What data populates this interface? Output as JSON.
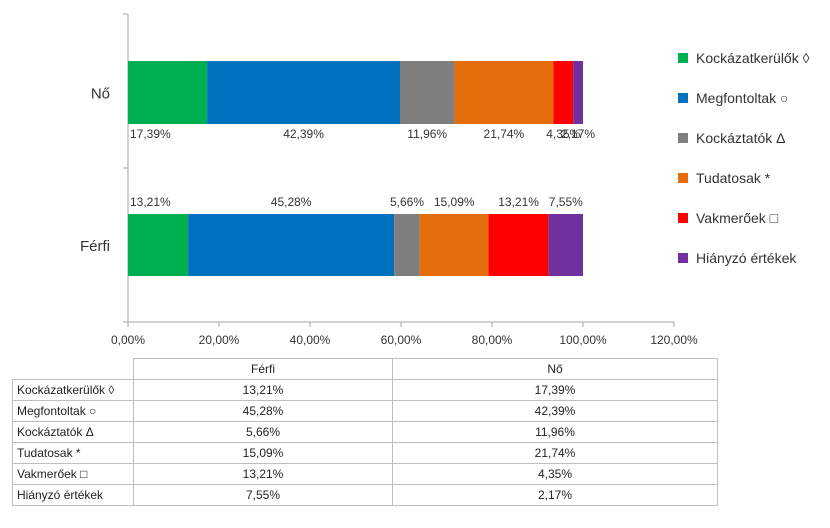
{
  "chart_data": {
    "type": "bar",
    "orientation": "horizontal",
    "stacked": true,
    "categories": [
      "Férfi",
      "Nő"
    ],
    "series": [
      {
        "name": "Kockázatkerülők ◊",
        "values": [
          13.21,
          17.39
        ],
        "color": "#00b050"
      },
      {
        "name": "Megfontoltak ○",
        "values": [
          45.28,
          42.39
        ],
        "color": "#0070c0"
      },
      {
        "name": "Kockáztatók Δ",
        "values": [
          5.66,
          11.96
        ],
        "color": "#7f7f7f"
      },
      {
        "name": "Tudatosak *",
        "values": [
          15.09,
          21.74
        ],
        "color": "#e46c0a"
      },
      {
        "name": "Vakmerőek □",
        "values": [
          13.21,
          4.35
        ],
        "color": "#ff0000"
      },
      {
        "name": "Hiányzó értékek",
        "values": [
          7.55,
          2.17
        ],
        "color": "#7030a0"
      }
    ],
    "data_labels": {
      "Férfi": [
        "13,21%",
        "45,28%",
        "5,66%",
        "15,09%",
        "13,21%",
        "7,55%"
      ],
      "Nő": [
        "17,39%",
        "42,39%",
        "11,96%",
        "21,74%",
        "4,35%",
        "2,17%"
      ]
    },
    "xlim": [
      0,
      120
    ],
    "x_ticks": [
      "0,00%",
      "20,00%",
      "40,00%",
      "60,00%",
      "80,00%",
      "100,00%",
      "120,00%"
    ],
    "legend_position": "right",
    "grid": false
  },
  "table": {
    "headers": [
      "",
      "Férfi",
      "Nő"
    ],
    "rows": [
      [
        "Kockázatkerülők ◊",
        "13,21%",
        "17,39%"
      ],
      [
        "Megfontoltak ○",
        "45,28%",
        "42,39%"
      ],
      [
        "Kockáztatók Δ",
        "5,66%",
        "11,96%"
      ],
      [
        "Tudatosak *",
        "15,09%",
        "21,74%"
      ],
      [
        "Vakmerőek □",
        "13,21%",
        "4,35%"
      ],
      [
        "Hiányzó értékek",
        "7,55%",
        "2,17%"
      ]
    ]
  }
}
